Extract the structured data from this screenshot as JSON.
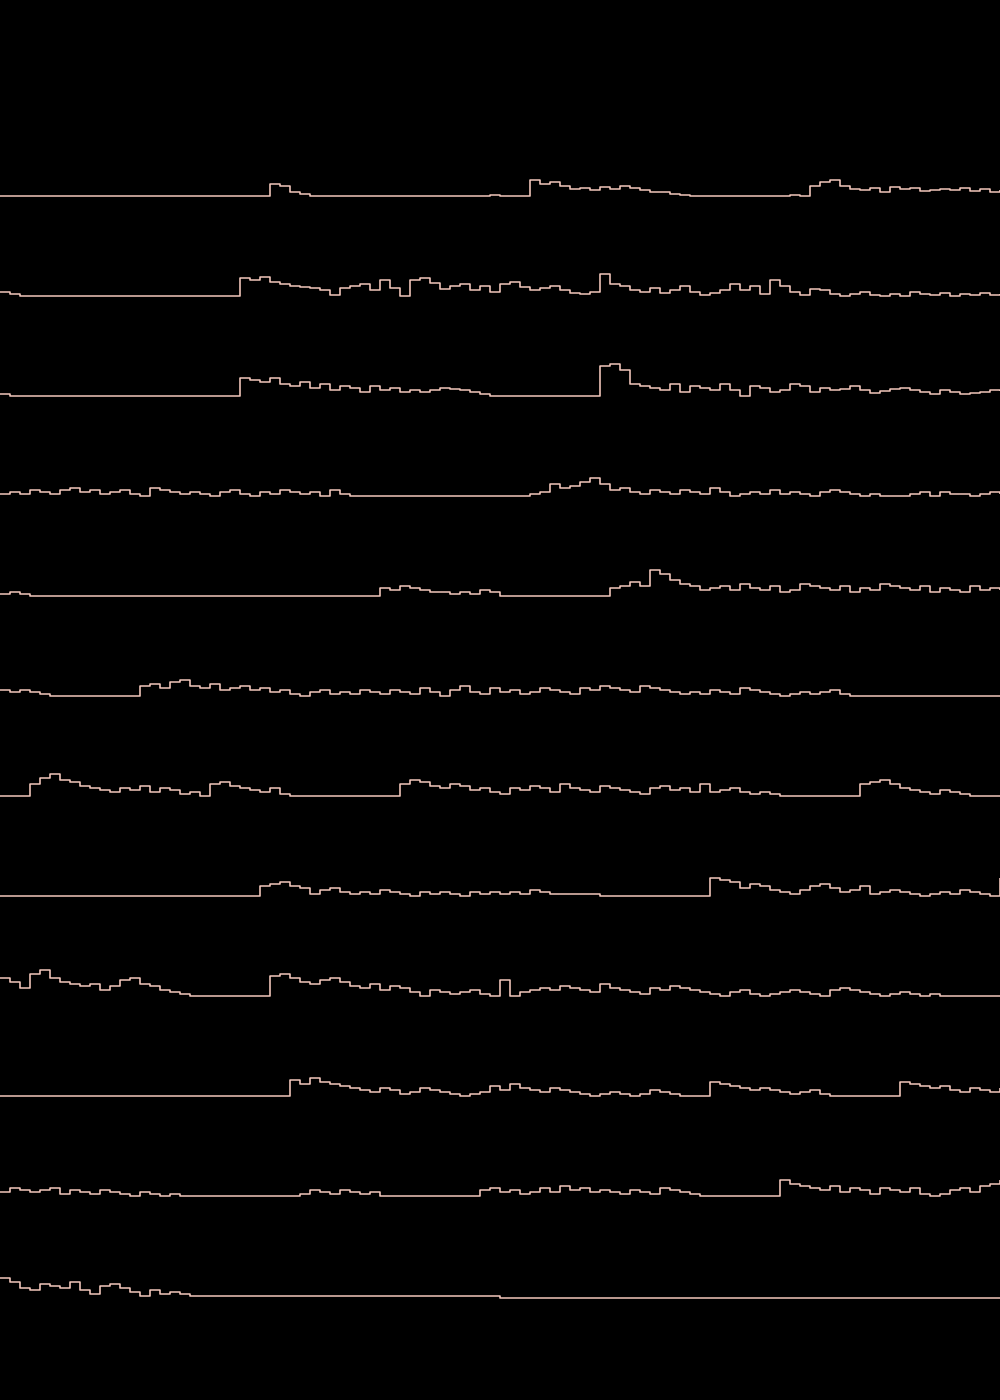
{
  "colors": {
    "background": "#000000",
    "line": "#f6c9bd"
  },
  "chart_data": {
    "type": "line",
    "layout": "small-multiples",
    "title": "",
    "xlabel": "",
    "ylabel": "",
    "axes_visible": false,
    "grid": false,
    "legend": "none",
    "x": [
      0,
      10,
      20,
      30,
      40,
      50,
      60,
      70,
      80,
      90,
      100,
      110,
      120,
      130,
      140,
      150,
      160,
      170,
      180,
      190,
      200,
      210,
      220,
      230,
      240,
      250,
      260,
      270,
      280,
      290,
      300,
      310,
      320,
      330,
      340,
      350,
      360,
      370,
      380,
      390,
      400,
      410,
      420,
      430,
      440,
      450,
      460,
      470,
      480,
      490,
      500,
      510,
      520,
      530,
      540,
      550,
      560,
      570,
      580,
      590,
      600,
      610,
      620,
      630,
      640,
      650,
      660,
      670,
      680,
      690,
      700,
      710,
      720,
      730,
      740,
      750,
      760,
      770,
      780,
      790,
      800,
      810,
      820,
      830,
      840,
      850,
      860,
      870,
      880,
      890,
      900,
      910,
      920,
      930,
      940,
      950,
      960,
      970,
      980,
      990,
      1000
    ],
    "xlim": [
      0,
      1000
    ],
    "ylim": [
      0,
      40
    ],
    "series": [
      {
        "values": [
          2,
          2,
          2,
          2,
          2,
          2,
          2,
          2,
          2,
          2,
          2,
          2,
          2,
          2,
          2,
          2,
          2,
          2,
          2,
          2,
          2,
          2,
          2,
          2,
          2,
          2,
          2,
          14,
          12,
          6,
          4,
          2,
          2,
          2,
          2,
          2,
          2,
          2,
          2,
          2,
          2,
          2,
          2,
          2,
          2,
          2,
          2,
          2,
          2,
          3,
          2,
          2,
          2,
          18,
          14,
          16,
          12,
          9,
          10,
          8,
          11,
          9,
          12,
          10,
          8,
          6,
          6,
          4,
          3,
          2,
          2,
          2,
          2,
          2,
          2,
          2,
          2,
          2,
          2,
          3,
          2,
          12,
          16,
          18,
          12,
          9,
          8,
          10,
          6,
          11,
          9,
          10,
          7,
          8,
          9,
          8,
          10,
          7,
          9,
          6,
          8
        ]
      },
      {
        "values": [
          6,
          4,
          2,
          2,
          2,
          2,
          2,
          2,
          2,
          2,
          2,
          2,
          2,
          2,
          2,
          2,
          2,
          2,
          2,
          2,
          2,
          2,
          2,
          2,
          20,
          18,
          21,
          16,
          14,
          12,
          11,
          10,
          8,
          3,
          10,
          12,
          14,
          8,
          18,
          10,
          2,
          18,
          20,
          15,
          9,
          12,
          14,
          8,
          12,
          6,
          14,
          16,
          11,
          8,
          10,
          12,
          8,
          5,
          4,
          6,
          24,
          14,
          12,
          8,
          6,
          10,
          5,
          8,
          12,
          6,
          3,
          5,
          8,
          14,
          8,
          12,
          4,
          18,
          12,
          6,
          3,
          9,
          8,
          4,
          2,
          4,
          6,
          3,
          2,
          4,
          2,
          6,
          4,
          3,
          5,
          2,
          4,
          3,
          5,
          3,
          4
        ]
      },
      {
        "values": [
          4,
          2,
          2,
          2,
          2,
          2,
          2,
          2,
          2,
          2,
          2,
          2,
          2,
          2,
          2,
          2,
          2,
          2,
          2,
          2,
          2,
          2,
          2,
          2,
          20,
          18,
          16,
          20,
          14,
          12,
          16,
          10,
          14,
          8,
          12,
          10,
          6,
          12,
          8,
          10,
          6,
          8,
          6,
          8,
          10,
          9,
          8,
          6,
          4,
          2,
          2,
          2,
          2,
          2,
          2,
          2,
          2,
          2,
          2,
          2,
          32,
          34,
          28,
          14,
          12,
          10,
          8,
          14,
          6,
          12,
          10,
          8,
          14,
          8,
          2,
          12,
          10,
          6,
          8,
          14,
          12,
          6,
          10,
          8,
          9,
          12,
          8,
          5,
          7,
          9,
          10,
          8,
          6,
          4,
          8,
          6,
          4,
          5,
          6,
          8,
          7
        ]
      },
      {
        "values": [
          4,
          6,
          4,
          8,
          6,
          4,
          8,
          10,
          6,
          8,
          4,
          6,
          8,
          4,
          2,
          10,
          8,
          6,
          4,
          6,
          4,
          2,
          6,
          8,
          4,
          2,
          6,
          4,
          8,
          6,
          4,
          6,
          2,
          8,
          4,
          2,
          2,
          2,
          2,
          2,
          2,
          2,
          2,
          2,
          2,
          2,
          2,
          2,
          2,
          2,
          2,
          2,
          2,
          4,
          6,
          14,
          10,
          12,
          16,
          20,
          14,
          8,
          10,
          6,
          4,
          8,
          6,
          4,
          8,
          6,
          4,
          10,
          6,
          2,
          4,
          6,
          4,
          8,
          4,
          6,
          4,
          2,
          6,
          8,
          6,
          4,
          2,
          4,
          2,
          2,
          2,
          4,
          6,
          2,
          6,
          4,
          4,
          2,
          4,
          6,
          4
        ]
      },
      {
        "values": [
          4,
          6,
          4,
          2,
          2,
          2,
          2,
          2,
          2,
          2,
          2,
          2,
          2,
          2,
          2,
          2,
          2,
          2,
          2,
          2,
          2,
          2,
          2,
          2,
          2,
          2,
          2,
          2,
          2,
          2,
          2,
          2,
          2,
          2,
          2,
          2,
          2,
          2,
          10,
          8,
          12,
          10,
          8,
          6,
          6,
          4,
          6,
          4,
          8,
          6,
          2,
          2,
          2,
          2,
          2,
          2,
          2,
          2,
          2,
          2,
          2,
          10,
          12,
          16,
          12,
          28,
          24,
          18,
          14,
          12,
          8,
          10,
          12,
          8,
          14,
          10,
          8,
          12,
          6,
          8,
          14,
          12,
          10,
          8,
          12,
          6,
          10,
          8,
          14,
          12,
          10,
          8,
          12,
          6,
          10,
          8,
          6,
          12,
          8,
          10,
          8
        ]
      },
      {
        "values": [
          8,
          6,
          8,
          6,
          4,
          2,
          2,
          2,
          2,
          2,
          2,
          2,
          2,
          2,
          12,
          14,
          10,
          16,
          18,
          12,
          10,
          14,
          8,
          10,
          12,
          8,
          10,
          6,
          8,
          4,
          2,
          6,
          8,
          4,
          6,
          4,
          8,
          6,
          4,
          8,
          6,
          4,
          10,
          6,
          2,
          8,
          12,
          6,
          4,
          10,
          6,
          8,
          4,
          6,
          10,
          8,
          6,
          4,
          10,
          8,
          12,
          10,
          8,
          6,
          12,
          10,
          8,
          6,
          4,
          6,
          4,
          8,
          6,
          4,
          10,
          8,
          6,
          4,
          2,
          4,
          6,
          4,
          6,
          8,
          4,
          2,
          2,
          2,
          2,
          2,
          2,
          2,
          2,
          2,
          2,
          2,
          2,
          2,
          2,
          2,
          2
        ]
      },
      {
        "values": [
          2,
          2,
          2,
          14,
          20,
          24,
          18,
          16,
          12,
          10,
          8,
          6,
          10,
          8,
          12,
          6,
          10,
          8,
          4,
          6,
          2,
          14,
          16,
          12,
          10,
          8,
          6,
          10,
          4,
          2,
          2,
          2,
          2,
          2,
          2,
          2,
          2,
          2,
          2,
          2,
          14,
          18,
          16,
          12,
          10,
          14,
          12,
          8,
          10,
          6,
          4,
          10,
          8,
          12,
          10,
          6,
          14,
          10,
          8,
          6,
          12,
          10,
          8,
          6,
          4,
          10,
          12,
          8,
          10,
          6,
          14,
          6,
          8,
          10,
          6,
          4,
          6,
          4,
          2,
          2,
          2,
          2,
          2,
          2,
          2,
          2,
          14,
          16,
          18,
          14,
          10,
          8,
          6,
          4,
          8,
          6,
          4,
          2,
          2,
          2,
          2
        ]
      },
      {
        "values": [
          2,
          2,
          2,
          2,
          2,
          2,
          2,
          2,
          2,
          2,
          2,
          2,
          2,
          2,
          2,
          2,
          2,
          2,
          2,
          2,
          2,
          2,
          2,
          2,
          2,
          2,
          12,
          14,
          16,
          12,
          10,
          4,
          8,
          10,
          6,
          4,
          6,
          4,
          8,
          6,
          4,
          2,
          6,
          4,
          6,
          4,
          2,
          6,
          4,
          6,
          4,
          6,
          4,
          8,
          6,
          4,
          4,
          4,
          4,
          4,
          2,
          2,
          2,
          2,
          2,
          2,
          2,
          2,
          2,
          2,
          2,
          20,
          18,
          16,
          10,
          14,
          12,
          8,
          6,
          4,
          8,
          12,
          14,
          10,
          6,
          8,
          12,
          4,
          6,
          8,
          6,
          4,
          2,
          4,
          6,
          4,
          8,
          6,
          4,
          2,
          20
        ]
      },
      {
        "values": [
          20,
          16,
          10,
          24,
          28,
          20,
          16,
          14,
          12,
          14,
          8,
          12,
          18,
          20,
          14,
          12,
          8,
          6,
          4,
          2,
          2,
          2,
          2,
          2,
          2,
          2,
          2,
          22,
          24,
          20,
          16,
          14,
          18,
          20,
          16,
          12,
          10,
          14,
          8,
          12,
          10,
          6,
          2,
          8,
          6,
          4,
          6,
          8,
          4,
          2,
          18,
          2,
          6,
          8,
          10,
          8,
          12,
          10,
          8,
          6,
          14,
          10,
          8,
          6,
          4,
          10,
          8,
          12,
          10,
          8,
          6,
          4,
          2,
          6,
          8,
          4,
          2,
          4,
          6,
          8,
          6,
          4,
          2,
          8,
          10,
          8,
          6,
          4,
          2,
          4,
          6,
          4,
          2,
          4,
          2,
          2,
          2,
          2,
          2,
          2,
          2
        ]
      },
      {
        "values": [
          2,
          2,
          2,
          2,
          2,
          2,
          2,
          2,
          2,
          2,
          2,
          2,
          2,
          2,
          2,
          2,
          2,
          2,
          2,
          2,
          2,
          2,
          2,
          2,
          2,
          2,
          2,
          2,
          2,
          18,
          14,
          20,
          16,
          14,
          12,
          10,
          8,
          6,
          10,
          8,
          4,
          6,
          10,
          8,
          6,
          4,
          2,
          4,
          6,
          12,
          8,
          14,
          10,
          8,
          6,
          10,
          8,
          6,
          4,
          2,
          4,
          6,
          4,
          2,
          4,
          8,
          6,
          4,
          2,
          2,
          2,
          16,
          14,
          12,
          10,
          8,
          10,
          8,
          6,
          4,
          6,
          8,
          4,
          2,
          2,
          2,
          2,
          2,
          2,
          2,
          16,
          14,
          12,
          10,
          12,
          8,
          6,
          10,
          8,
          6,
          10
        ]
      },
      {
        "values": [
          6,
          10,
          8,
          6,
          8,
          10,
          4,
          8,
          6,
          4,
          8,
          6,
          4,
          2,
          6,
          4,
          2,
          4,
          2,
          2,
          2,
          2,
          2,
          2,
          2,
          2,
          2,
          2,
          2,
          2,
          4,
          8,
          6,
          4,
          8,
          6,
          4,
          6,
          2,
          2,
          2,
          2,
          2,
          2,
          2,
          2,
          2,
          2,
          8,
          10,
          6,
          8,
          4,
          6,
          10,
          6,
          12,
          8,
          10,
          6,
          8,
          6,
          4,
          8,
          6,
          4,
          10,
          8,
          6,
          4,
          2,
          2,
          2,
          2,
          2,
          2,
          2,
          2,
          18,
          14,
          12,
          10,
          8,
          12,
          6,
          10,
          8,
          4,
          10,
          8,
          6,
          10,
          4,
          2,
          4,
          8,
          10,
          6,
          12,
          14,
          18
        ]
      },
      {
        "values": [
          20,
          16,
          10,
          8,
          14,
          12,
          10,
          16,
          8,
          4,
          12,
          14,
          10,
          6,
          2,
          8,
          4,
          6,
          4,
          2,
          2,
          2,
          2,
          2,
          2,
          2,
          2,
          2,
          2,
          2,
          2,
          2,
          2,
          2,
          2,
          2,
          2,
          2,
          2,
          2,
          2,
          2,
          2,
          2,
          2,
          2,
          2,
          2,
          2,
          2,
          0,
          0,
          0,
          0,
          0,
          0,
          0,
          0,
          0,
          0,
          0,
          0,
          0,
          0,
          0,
          0,
          0,
          0,
          0,
          0,
          0,
          0,
          0,
          0,
          0,
          0,
          0,
          0,
          0,
          0,
          0,
          0,
          0,
          0,
          0,
          0,
          0,
          0,
          0,
          0,
          0,
          0,
          0,
          0,
          0,
          0,
          0,
          0,
          0,
          0,
          0
        ]
      }
    ]
  }
}
